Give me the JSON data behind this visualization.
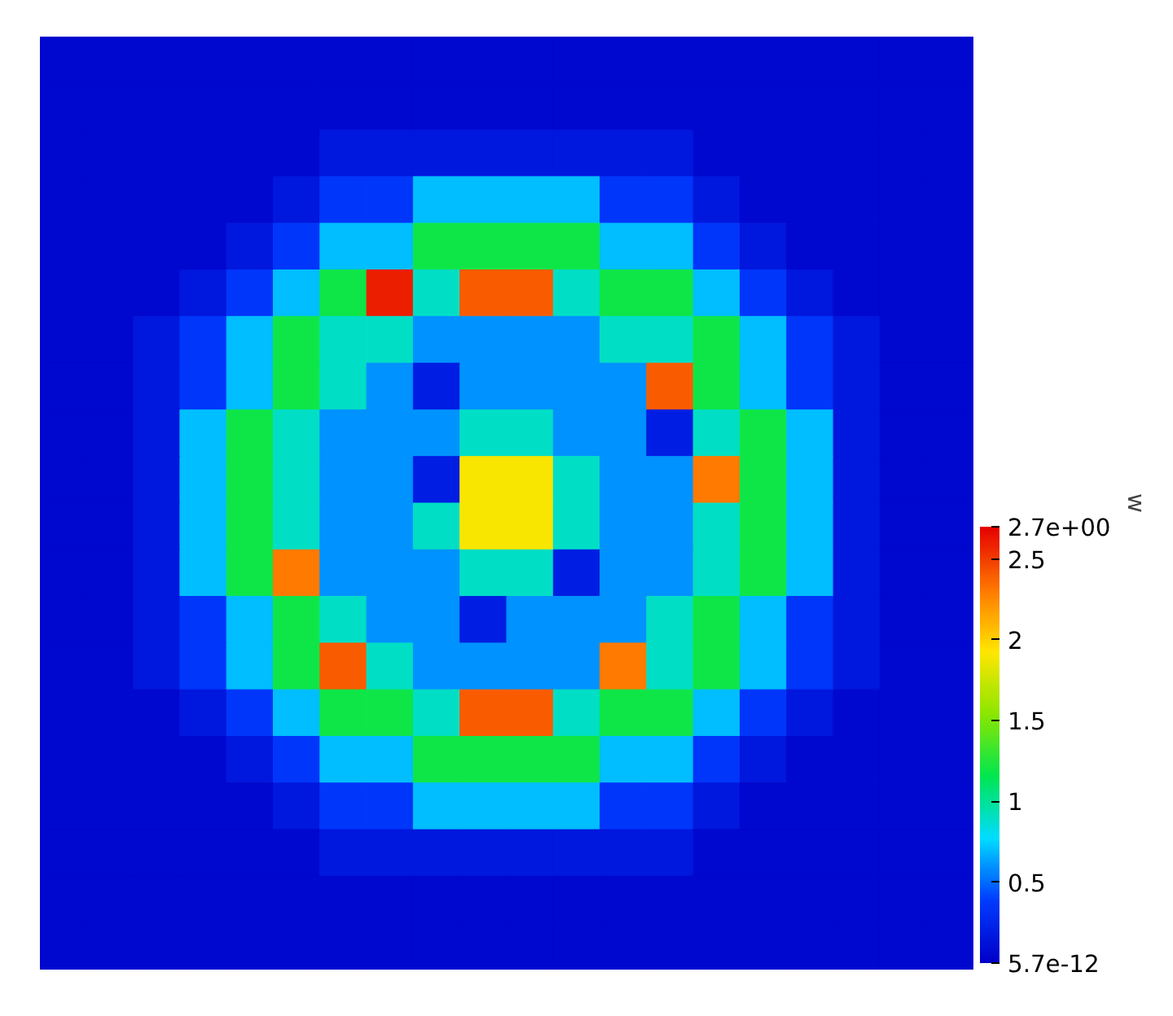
{
  "chart_data": {
    "type": "heatmap",
    "clabel": "w",
    "categories": [
      null,
      null,
      null,
      null,
      null,
      null,
      null,
      null,
      null,
      null,
      null,
      null,
      null,
      null,
      null,
      null,
      null,
      null,
      null,
      null
    ],
    "y_categories": [
      null,
      null,
      null,
      null,
      null,
      null,
      null,
      null,
      null,
      null,
      null,
      null,
      null,
      null,
      null,
      null,
      null,
      null,
      null,
      null
    ],
    "clim": [
      5.7e-12,
      2.7
    ],
    "cticks": [
      {
        "value": 5.7e-12,
        "label": "5.7e-12"
      },
      0.5,
      1,
      1.5,
      2,
      2.5,
      {
        "value": 2.7,
        "label": "2.7e+00"
      }
    ],
    "cells": [
      [
        0.05,
        0.05,
        0.05,
        0.05,
        0.05,
        0.05,
        0.05,
        0.05,
        0.05,
        0.05,
        0.05,
        0.05,
        0.05,
        0.05,
        0.05,
        0.05,
        0.05,
        0.05,
        0.05,
        0.05
      ],
      [
        0.05,
        0.05,
        0.05,
        0.05,
        0.05,
        0.05,
        0.05,
        0.05,
        0.05,
        0.05,
        0.05,
        0.05,
        0.05,
        0.05,
        0.05,
        0.05,
        0.05,
        0.05,
        0.05,
        0.05
      ],
      [
        0.05,
        0.05,
        0.05,
        0.05,
        0.05,
        0.05,
        0.15,
        0.15,
        0.15,
        0.15,
        0.15,
        0.15,
        0.15,
        0.15,
        0.05,
        0.05,
        0.05,
        0.05,
        0.05,
        0.05
      ],
      [
        0.05,
        0.05,
        0.05,
        0.05,
        0.05,
        0.15,
        0.35,
        0.35,
        0.7,
        0.7,
        0.7,
        0.7,
        0.35,
        0.35,
        0.15,
        0.05,
        0.05,
        0.05,
        0.05,
        0.05
      ],
      [
        0.05,
        0.05,
        0.05,
        0.05,
        0.15,
        0.35,
        0.7,
        0.7,
        1.2,
        1.2,
        1.2,
        1.2,
        0.7,
        0.7,
        0.35,
        0.15,
        0.05,
        0.05,
        0.05,
        0.05
      ],
      [
        0.05,
        0.05,
        0.05,
        0.15,
        0.35,
        0.7,
        1.2,
        2.6,
        0.9,
        2.4,
        2.4,
        0.9,
        1.2,
        1.2,
        0.7,
        0.35,
        0.15,
        0.05,
        0.05,
        0.05
      ],
      [
        0.05,
        0.05,
        0.15,
        0.35,
        0.7,
        1.2,
        0.9,
        0.9,
        0.6,
        0.6,
        0.6,
        0.6,
        0.9,
        0.9,
        1.2,
        0.7,
        0.35,
        0.15,
        0.05,
        0.05
      ],
      [
        0.05,
        0.05,
        0.15,
        0.35,
        0.7,
        1.2,
        0.9,
        0.6,
        0.2,
        0.6,
        0.6,
        0.6,
        0.6,
        2.4,
        1.2,
        0.7,
        0.35,
        0.15,
        0.05,
        0.05
      ],
      [
        0.05,
        0.05,
        0.15,
        0.7,
        1.2,
        0.9,
        0.6,
        0.6,
        0.6,
        0.9,
        0.9,
        0.6,
        0.6,
        0.2,
        0.9,
        1.2,
        0.7,
        0.15,
        0.05,
        0.05
      ],
      [
        0.05,
        0.05,
        0.15,
        0.7,
        1.2,
        0.9,
        0.6,
        0.6,
        0.2,
        1.9,
        1.9,
        0.9,
        0.6,
        0.6,
        2.3,
        1.2,
        0.7,
        0.15,
        0.05,
        0.05
      ],
      [
        0.05,
        0.05,
        0.15,
        0.7,
        1.2,
        0.9,
        0.6,
        0.6,
        0.9,
        1.9,
        1.9,
        0.9,
        0.6,
        0.6,
        0.9,
        1.2,
        0.7,
        0.15,
        0.05,
        0.05
      ],
      [
        0.05,
        0.05,
        0.15,
        0.7,
        1.2,
        2.3,
        0.6,
        0.6,
        0.6,
        0.9,
        0.9,
        0.2,
        0.6,
        0.6,
        0.9,
        1.2,
        0.7,
        0.15,
        0.05,
        0.05
      ],
      [
        0.05,
        0.05,
        0.15,
        0.35,
        0.7,
        1.2,
        0.9,
        0.6,
        0.6,
        0.2,
        0.6,
        0.6,
        0.6,
        0.9,
        1.2,
        0.7,
        0.35,
        0.15,
        0.05,
        0.05
      ],
      [
        0.05,
        0.05,
        0.15,
        0.35,
        0.7,
        1.2,
        2.4,
        0.9,
        0.6,
        0.6,
        0.6,
        0.6,
        2.3,
        0.9,
        1.2,
        0.7,
        0.35,
        0.15,
        0.05,
        0.05
      ],
      [
        0.05,
        0.05,
        0.05,
        0.15,
        0.35,
        0.7,
        1.2,
        1.2,
        0.9,
        2.4,
        2.4,
        0.9,
        1.2,
        1.2,
        0.7,
        0.35,
        0.15,
        0.05,
        0.05,
        0.05
      ],
      [
        0.05,
        0.05,
        0.05,
        0.05,
        0.15,
        0.35,
        0.7,
        0.7,
        1.2,
        1.2,
        1.2,
        1.2,
        0.7,
        0.7,
        0.35,
        0.15,
        0.05,
        0.05,
        0.05,
        0.05
      ],
      [
        0.05,
        0.05,
        0.05,
        0.05,
        0.05,
        0.15,
        0.35,
        0.35,
        0.7,
        0.7,
        0.7,
        0.7,
        0.35,
        0.35,
        0.15,
        0.05,
        0.05,
        0.05,
        0.05,
        0.05
      ],
      [
        0.05,
        0.05,
        0.05,
        0.05,
        0.05,
        0.05,
        0.15,
        0.15,
        0.15,
        0.15,
        0.15,
        0.15,
        0.15,
        0.15,
        0.05,
        0.05,
        0.05,
        0.05,
        0.05,
        0.05
      ],
      [
        0.05,
        0.05,
        0.05,
        0.05,
        0.05,
        0.05,
        0.05,
        0.05,
        0.05,
        0.05,
        0.05,
        0.05,
        0.05,
        0.05,
        0.05,
        0.05,
        0.05,
        0.05,
        0.05,
        0.05
      ],
      [
        0.05,
        0.05,
        0.05,
        0.05,
        0.05,
        0.05,
        0.05,
        0.05,
        0.05,
        0.05,
        0.05,
        0.05,
        0.05,
        0.05,
        0.05,
        0.05,
        0.05,
        0.05,
        0.05,
        0.05
      ]
    ]
  }
}
